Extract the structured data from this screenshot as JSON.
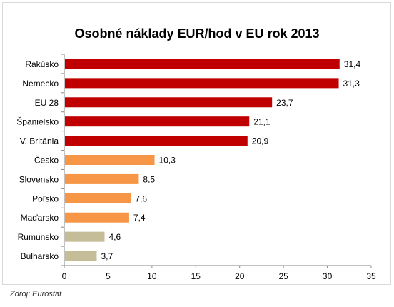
{
  "chart_data": {
    "type": "bar",
    "orientation": "horizontal",
    "title": "Osobné náklady EUR/hod v EU rok 2013",
    "xlabel": "",
    "ylabel": "",
    "categories": [
      "Rakúsko",
      "Nemecko",
      "EU 28",
      "Španielsko",
      "V. Británia",
      "Česko",
      "Slovensko",
      "Poľsko",
      "Maďarsko",
      "Rumunsko",
      "Bulharsko"
    ],
    "values": [
      31.4,
      31.3,
      23.7,
      21.1,
      20.9,
      10.3,
      8.5,
      7.6,
      7.4,
      4.6,
      3.7
    ],
    "value_labels": [
      "31,4",
      "31,3",
      "23,7",
      "21,1",
      "20,9",
      "10,3",
      "8,5",
      "7,6",
      "7,4",
      "4,6",
      "3,7"
    ],
    "bar_colors": [
      "#c00000",
      "#c00000",
      "#c00000",
      "#c00000",
      "#c00000",
      "#f79646",
      "#f79646",
      "#f79646",
      "#f79646",
      "#c4bd97",
      "#c4bd97"
    ],
    "xlim": [
      0,
      35
    ],
    "xticks": [
      0,
      5,
      10,
      15,
      20,
      25,
      30,
      35
    ],
    "grid": false,
    "legend": "none"
  },
  "source_note": "Zdroj: Eurostat"
}
